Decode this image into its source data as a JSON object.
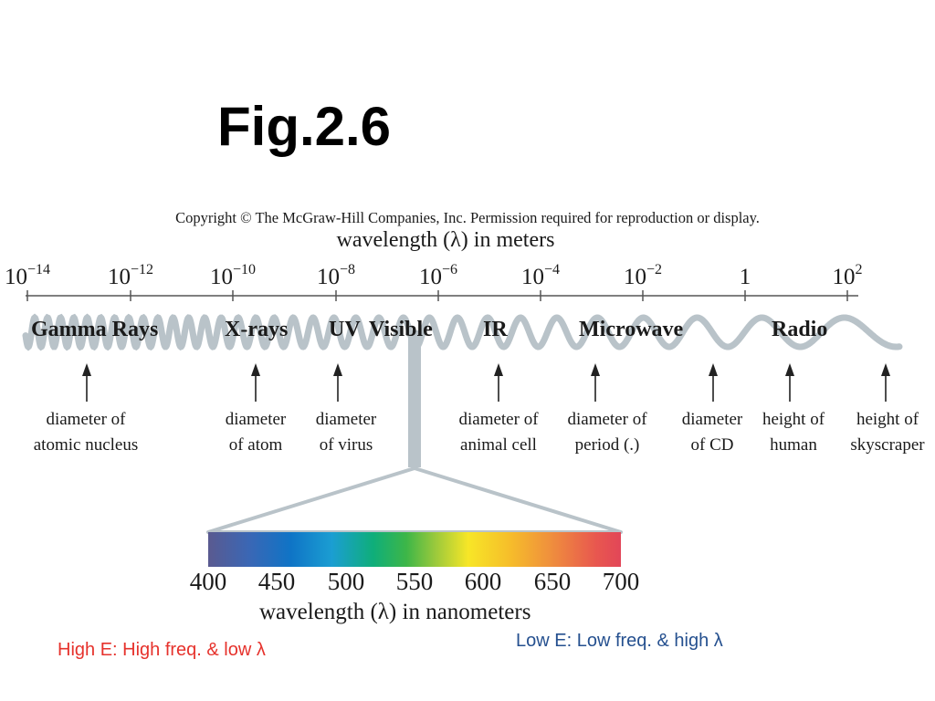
{
  "title": "Fig.2.6",
  "copyright": "Copyright © The McGraw-Hill Companies, Inc. Permission required for reproduction or display.",
  "wavelength_meters_label": "wavelength (λ) in meters",
  "scale_ticks": [
    {
      "base": "10",
      "exp": "−14"
    },
    {
      "base": "10",
      "exp": "−12"
    },
    {
      "base": "10",
      "exp": "−10"
    },
    {
      "base": "10",
      "exp": "−8"
    },
    {
      "base": "10",
      "exp": "−6"
    },
    {
      "base": "10",
      "exp": "−4"
    },
    {
      "base": "10",
      "exp": "−2"
    },
    {
      "base": "1",
      "exp": ""
    },
    {
      "base": "10",
      "exp": "2"
    }
  ],
  "bands": [
    "Gamma Rays",
    "X-rays",
    "UV",
    "Visible",
    "IR",
    "Microwave",
    "Radio"
  ],
  "examples": [
    {
      "line1": "diameter of",
      "line2": "atomic nucleus"
    },
    {
      "line1": "diameter",
      "line2": "of atom"
    },
    {
      "line1": "diameter",
      "line2": "of virus"
    },
    {
      "line1": "diameter of",
      "line2": "animal cell"
    },
    {
      "line1": "diameter of",
      "line2": "period (.)"
    },
    {
      "line1": "diameter",
      "line2": "of CD"
    },
    {
      "line1": "height of",
      "line2": "human"
    },
    {
      "line1": "height of",
      "line2": "skyscraper"
    }
  ],
  "visible_ticks": [
    "400",
    "450",
    "500",
    "550",
    "600",
    "650",
    "700"
  ],
  "wavelength_nm_label": "wavelength (λ) in nanometers",
  "high_energy_note": "High E: High freq. & low λ",
  "low_energy_note": "Low E: Low freq. & high λ",
  "colors": {
    "wave": "#b9c3c9",
    "high_note": "#e6322c",
    "low_note": "#25508f"
  }
}
